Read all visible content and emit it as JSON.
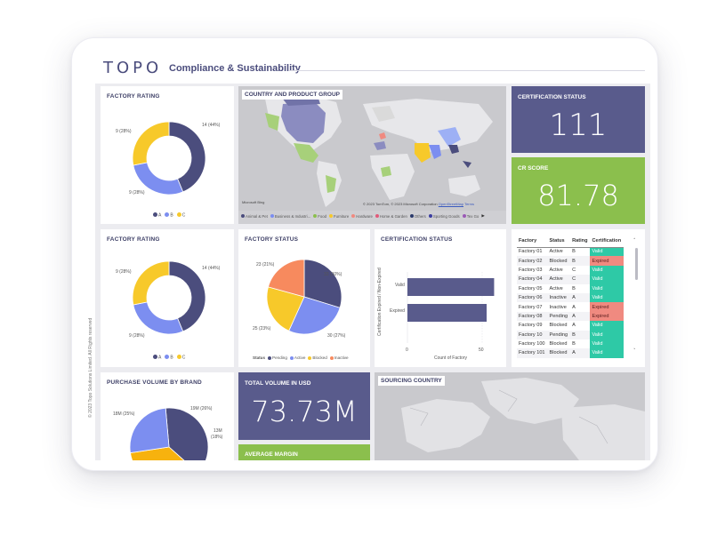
{
  "header": {
    "logo": "TOPO",
    "title": "Compliance & Sustainability",
    "side_note": "© 2023 Topo Solutions Limited. All Rights reserved"
  },
  "colors": {
    "A": "#4b4d7d",
    "B": "#7c8ef0",
    "C": "#f7c92a",
    "kpi_purple": "#595b8c",
    "kpi_green": "#8bbf4d",
    "valid": "#2ec9a6",
    "expired": "#f08a80"
  },
  "factory_rating_1": {
    "title": "FACTORY RATING",
    "labels": {
      "a": "14 (44%)",
      "b": "9 (28%)",
      "c": "9 (28%)"
    },
    "legend": [
      "A",
      "B",
      "C"
    ]
  },
  "factory_rating_2": {
    "title": "FACTORY RATING",
    "labels": {
      "a": "14 (44%)",
      "b": "9 (28%)",
      "c": "9 (28%)"
    },
    "legend": [
      "A",
      "B",
      "C"
    ]
  },
  "map1": {
    "title": "COUNTRY AND PRODUCT GROUP",
    "attribution": "© 2023 TomTom, © 2023 Microsoft Corporation",
    "attribution_link": "OpenStreetMap",
    "terms": "Terms",
    "bing": "Microsoft Bing",
    "legend": [
      "Animal & Pet",
      "Business & Industri...",
      "Food",
      "Furniture",
      "Hardware",
      "Home & Garden",
      "Others",
      "Sporting Goods",
      "Tex Go"
    ]
  },
  "kpis": {
    "cert_status": {
      "title": "CERTIFICATION STATUS",
      "value": "111"
    },
    "cr_score": {
      "title": "CR SCORE",
      "value": "81.78"
    },
    "total_volume": {
      "title": "TOTAL VOLUME IN USD",
      "value": "73.73M"
    },
    "avg_margin": {
      "title": "AVERAGE MARGIN"
    }
  },
  "factory_status": {
    "title": "FACTORY STATUS",
    "labels": {
      "pending": "33 (30%)",
      "active": "30 (27%)",
      "blocked": "25 (23%)",
      "inactive": "23 (21%)"
    },
    "legend_title": "Status",
    "legend": [
      "Pending",
      "Active",
      "Blocked",
      "Inactive"
    ]
  },
  "cert_bar": {
    "title": "CERTIFICATION STATUS",
    "ylabel": "Certification Expired / Non-Expired",
    "xlabel": "Count of Factory",
    "x_ticks": [
      "0",
      "50"
    ]
  },
  "chart_data": [
    {
      "type": "pie",
      "title": "FACTORY RATING",
      "categories": [
        "A",
        "B",
        "C"
      ],
      "values": [
        14,
        9,
        9
      ]
    },
    {
      "type": "pie",
      "title": "FACTORY RATING",
      "categories": [
        "A",
        "B",
        "C"
      ],
      "values": [
        14,
        9,
        9
      ]
    },
    {
      "type": "pie",
      "title": "FACTORY STATUS",
      "categories": [
        "Pending",
        "Active",
        "Blocked",
        "Inactive"
      ],
      "values": [
        33,
        30,
        25,
        23
      ]
    },
    {
      "type": "bar",
      "title": "CERTIFICATION STATUS",
      "categories": [
        "Valid",
        "Expired"
      ],
      "values": [
        58,
        53
      ],
      "xlabel": "Count of Factory",
      "ylabel": "Certification Expired / Non-Expired",
      "xlim": [
        0,
        65
      ]
    },
    {
      "type": "pie",
      "title": "PURCHASE VOLUME BY BRAND",
      "values": [
        19,
        18,
        13
      ],
      "labels": [
        "19M (26%)",
        "18M (25%)",
        "13M (18%)"
      ]
    }
  ],
  "table": {
    "headers": [
      "Factory",
      "Status",
      "Rating",
      "Certification"
    ],
    "rows": [
      [
        "Factory 01",
        "Active",
        "B",
        "Valid"
      ],
      [
        "Factory 02",
        "Blocked",
        "B",
        "Expired"
      ],
      [
        "Factory 03",
        "Active",
        "C",
        "Valid"
      ],
      [
        "Factory 04",
        "Active",
        "C",
        "Valid"
      ],
      [
        "Factory 05",
        "Active",
        "B",
        "Valid"
      ],
      [
        "Factory 06",
        "Inactive",
        "A",
        "Valid"
      ],
      [
        "Factory 07",
        "Inactive",
        "A",
        "Expired"
      ],
      [
        "Factory 08",
        "Pending",
        "A",
        "Expired"
      ],
      [
        "Factory 09",
        "Blocked",
        "A",
        "Valid"
      ],
      [
        "Factory 10",
        "Pending",
        "B",
        "Valid"
      ],
      [
        "Factory 100",
        "Blocked",
        "B",
        "Valid"
      ],
      [
        "Factory 101",
        "Blocked",
        "A",
        "Valid"
      ]
    ]
  },
  "purchase": {
    "title": "PURCHASE VOLUME BY BRAND",
    "labels": {
      "l1": "19M (26%)",
      "l2": "18M (25%)",
      "l3": "13M",
      "l4": "(18%)"
    }
  },
  "map2": {
    "title": "SOURCING COUNTRY"
  }
}
